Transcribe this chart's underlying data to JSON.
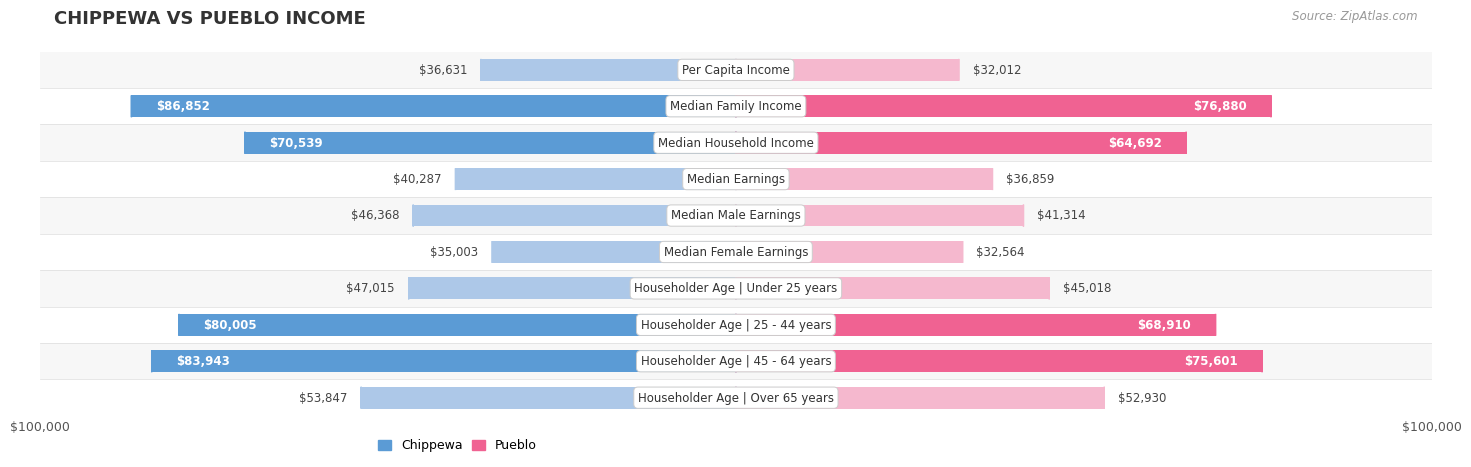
{
  "title": "CHIPPEWA VS PUEBLO INCOME",
  "source": "Source: ZipAtlas.com",
  "categories": [
    "Per Capita Income",
    "Median Family Income",
    "Median Household Income",
    "Median Earnings",
    "Median Male Earnings",
    "Median Female Earnings",
    "Householder Age | Under 25 years",
    "Householder Age | 25 - 44 years",
    "Householder Age | 45 - 64 years",
    "Householder Age | Over 65 years"
  ],
  "chippewa_values": [
    36631,
    86852,
    70539,
    40287,
    46368,
    35003,
    47015,
    80005,
    83943,
    53847
  ],
  "pueblo_values": [
    32012,
    76880,
    64692,
    36859,
    41314,
    32564,
    45018,
    68910,
    75601,
    52930
  ],
  "max_value": 100000,
  "chippewa_color_strong": "#5b9bd5",
  "chippewa_color_light": "#adc8e8",
  "pueblo_color_strong": "#f06292",
  "pueblo_color_light": "#f5b8ce",
  "background_color": "#ffffff",
  "row_bg_light": "#f7f7f7",
  "row_bg_white": "#ffffff",
  "strong_threshold": 60000,
  "xlabel_left": "$100,000",
  "xlabel_right": "$100,000",
  "legend_chippewa": "Chippewa",
  "legend_pueblo": "Pueblo",
  "title_fontsize": 13,
  "source_fontsize": 8.5,
  "bar_label_fontsize": 8.5,
  "category_fontsize": 8.5
}
